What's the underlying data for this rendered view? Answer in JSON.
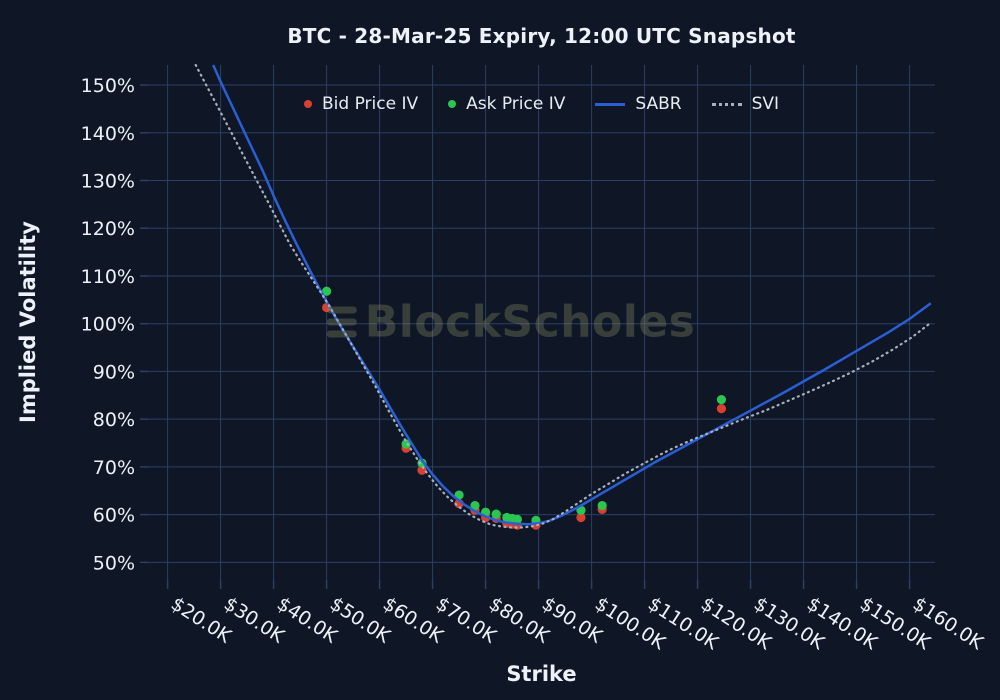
{
  "app": {
    "background": "#0f1726",
    "grid_color": "#2c3e66",
    "text_color": "#eef2f8",
    "watermark_color": "#8d9268"
  },
  "chart_data": {
    "type": "scatter",
    "title": "BTC - 28-Mar-25 Expiry, 12:00 UTC Snapshot",
    "xlabel": "Strike",
    "ylabel": "Implied Volatility",
    "watermark": "BlockScholes",
    "legend_position": "top-center",
    "grid": true,
    "x_range_k": [
      16.3,
      164.8
    ],
    "y_range_pct": [
      46.3,
      154.2
    ],
    "x_ticks": [
      {
        "value": 20,
        "label": "$20.0K"
      },
      {
        "value": 30,
        "label": "$30.0K"
      },
      {
        "value": 40,
        "label": "$40.0K"
      },
      {
        "value": 50,
        "label": "$50.0K"
      },
      {
        "value": 60,
        "label": "$60.0K"
      },
      {
        "value": 70,
        "label": "$70.0K"
      },
      {
        "value": 80,
        "label": "$80.0K"
      },
      {
        "value": 90,
        "label": "$90.0K"
      },
      {
        "value": 100,
        "label": "$100.0K"
      },
      {
        "value": 110,
        "label": "$110.0K"
      },
      {
        "value": 120,
        "label": "$120.0K"
      },
      {
        "value": 130,
        "label": "$130.0K"
      },
      {
        "value": 140,
        "label": "$140.0K"
      },
      {
        "value": 150,
        "label": "$150.0K"
      },
      {
        "value": 160,
        "label": "$160.0K"
      }
    ],
    "y_ticks": [
      {
        "value": 50,
        "label": "50%"
      },
      {
        "value": 60,
        "label": "60%"
      },
      {
        "value": 70,
        "label": "70%"
      },
      {
        "value": 80,
        "label": "80%"
      },
      {
        "value": 90,
        "label": "90%"
      },
      {
        "value": 100,
        "label": "100%"
      },
      {
        "value": 110,
        "label": "110%"
      },
      {
        "value": 120,
        "label": "120%"
      },
      {
        "value": 130,
        "label": "130%"
      },
      {
        "value": 140,
        "label": "140%"
      },
      {
        "value": 150,
        "label": "150%"
      }
    ],
    "series": [
      {
        "name": "Bid Price IV",
        "type": "scatter",
        "color": "#d8402f",
        "points": [
          [
            50,
            103.4
          ],
          [
            65,
            73.9
          ],
          [
            68,
            69.3
          ],
          [
            75,
            62.3
          ],
          [
            78,
            60.9
          ],
          [
            80,
            59.4
          ],
          [
            82,
            59.2
          ],
          [
            84,
            58.2
          ],
          [
            85,
            58.0
          ],
          [
            86,
            57.8
          ],
          [
            89.5,
            57.8
          ],
          [
            98,
            59.4
          ],
          [
            102,
            61.1
          ],
          [
            124.5,
            82.2
          ]
        ]
      },
      {
        "name": "Ask Price IV",
        "type": "scatter",
        "color": "#2bc551",
        "points": [
          [
            50,
            106.8
          ],
          [
            65,
            74.8
          ],
          [
            68,
            70.8
          ],
          [
            75,
            64.1
          ],
          [
            78,
            61.9
          ],
          [
            80,
            60.5
          ],
          [
            82,
            60.1
          ],
          [
            84,
            59.4
          ],
          [
            85,
            59.2
          ],
          [
            86,
            59.0
          ],
          [
            89.5,
            58.8
          ],
          [
            98,
            60.9
          ],
          [
            102,
            61.9
          ],
          [
            124.5,
            84.1
          ]
        ]
      },
      {
        "name": "SABR",
        "type": "line",
        "color": "#2a5fd4",
        "points": [
          [
            28.6,
            154.2
          ],
          [
            30,
            150.7
          ],
          [
            32,
            146.0
          ],
          [
            34,
            141.3
          ],
          [
            36,
            136.6
          ],
          [
            38,
            131.9
          ],
          [
            40,
            126.8
          ],
          [
            42,
            122.0
          ],
          [
            44,
            117.4
          ],
          [
            46,
            113.0
          ],
          [
            48,
            108.7
          ],
          [
            50,
            104.6
          ],
          [
            52,
            100.7
          ],
          [
            54,
            97.0
          ],
          [
            56,
            93.4
          ],
          [
            58,
            89.8
          ],
          [
            60,
            86.2
          ],
          [
            62,
            82.4
          ],
          [
            64,
            78.6
          ],
          [
            66,
            75.0
          ],
          [
            68,
            71.4
          ],
          [
            70,
            68.4
          ],
          [
            72,
            65.9
          ],
          [
            74,
            63.8
          ],
          [
            76,
            62.1
          ],
          [
            78,
            60.7
          ],
          [
            80,
            59.6
          ],
          [
            82,
            58.8
          ],
          [
            84,
            58.3
          ],
          [
            86,
            58.1
          ],
          [
            88,
            58.0
          ],
          [
            90,
            58.2
          ],
          [
            92,
            58.7
          ],
          [
            94,
            59.6
          ],
          [
            96,
            60.7
          ],
          [
            98,
            61.9
          ],
          [
            100,
            63.2
          ],
          [
            102,
            64.5
          ],
          [
            104,
            65.8
          ],
          [
            106,
            67.1
          ],
          [
            108,
            68.4
          ],
          [
            110,
            69.7
          ],
          [
            112,
            71.0
          ],
          [
            114,
            72.2
          ],
          [
            116,
            73.4
          ],
          [
            118,
            74.6
          ],
          [
            120,
            75.8
          ],
          [
            124,
            78.2
          ],
          [
            128,
            80.6
          ],
          [
            132,
            83.0
          ],
          [
            136,
            85.4
          ],
          [
            140,
            87.9
          ],
          [
            144,
            90.4
          ],
          [
            148,
            93.0
          ],
          [
            152,
            95.6
          ],
          [
            156,
            98.2
          ],
          [
            160,
            101.0
          ],
          [
            164,
            104.3
          ]
        ]
      },
      {
        "name": "SVI",
        "type": "line",
        "dash": "dot",
        "color": "#a7b0bd",
        "points": [
          [
            25.3,
            154.2
          ],
          [
            27,
            150.6
          ],
          [
            29,
            146.4
          ],
          [
            31,
            142.2
          ],
          [
            33,
            138.0
          ],
          [
            35,
            133.8
          ],
          [
            37,
            129.6
          ],
          [
            39,
            125.4
          ],
          [
            41,
            121.1
          ],
          [
            43,
            116.8
          ],
          [
            45,
            113.2
          ],
          [
            47,
            109.8
          ],
          [
            49,
            106.4
          ],
          [
            51,
            102.8
          ],
          [
            53,
            98.9
          ],
          [
            55,
            95.1
          ],
          [
            57,
            91.2
          ],
          [
            59,
            87.3
          ],
          [
            61,
            83.2
          ],
          [
            63,
            79.2
          ],
          [
            65,
            75.3
          ],
          [
            67,
            71.8
          ],
          [
            69,
            68.6
          ],
          [
            71,
            65.8
          ],
          [
            73,
            63.5
          ],
          [
            75,
            61.6
          ],
          [
            77,
            60.0
          ],
          [
            79,
            58.8
          ],
          [
            81,
            57.9
          ],
          [
            83,
            57.5
          ],
          [
            85,
            57.3
          ],
          [
            87,
            57.3
          ],
          [
            89,
            57.6
          ],
          [
            91,
            58.2
          ],
          [
            93,
            59.2
          ],
          [
            95,
            60.6
          ],
          [
            97,
            62.1
          ],
          [
            99,
            63.6
          ],
          [
            101,
            65.0
          ],
          [
            103,
            66.3
          ],
          [
            105,
            67.7
          ],
          [
            107,
            69.0
          ],
          [
            109,
            70.2
          ],
          [
            111,
            71.4
          ],
          [
            113,
            72.6
          ],
          [
            115,
            73.7
          ],
          [
            117,
            74.7
          ],
          [
            119,
            75.7
          ],
          [
            121,
            76.6
          ],
          [
            123,
            77.5
          ],
          [
            125,
            78.4
          ],
          [
            127,
            79.3
          ],
          [
            129,
            80.2
          ],
          [
            133,
            81.9
          ],
          [
            137,
            83.8
          ],
          [
            141,
            85.7
          ],
          [
            145,
            87.7
          ],
          [
            149,
            89.8
          ],
          [
            153,
            92.1
          ],
          [
            157,
            94.7
          ],
          [
            160.5,
            97.2
          ],
          [
            164,
            100.2
          ]
        ]
      }
    ]
  }
}
